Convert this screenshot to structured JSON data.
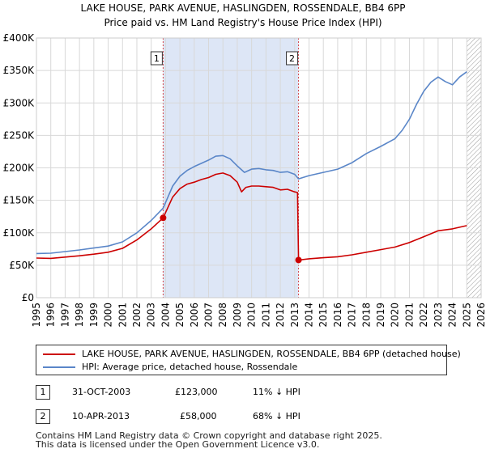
{
  "title_line1": "LAKE HOUSE, PARK AVENUE, HASLINGDEN, ROSSENDALE, BB4 6PP",
  "title_line2": "Price paid vs. HM Land Registry's House Price Index (HPI)",
  "colors": {
    "price": "#cc0000",
    "hpi": "#5a86c8",
    "band": "#dde6f6",
    "grid": "#d8d8d8",
    "hatch": "#999999"
  },
  "chart_data": {
    "type": "line",
    "title": "LAKE HOUSE, PARK AVENUE, HASLINGDEN, ROSSENDALE, BB4 6PP",
    "subtitle": "Price paid vs. HM Land Registry's House Price Index (HPI)",
    "xlim": [
      1995,
      2026
    ],
    "ylim": [
      0,
      400000
    ],
    "x_ticks": [
      "1995",
      "1996",
      "1997",
      "1998",
      "1999",
      "2000",
      "2001",
      "2002",
      "2003",
      "2004",
      "2005",
      "2006",
      "2007",
      "2008",
      "2009",
      "2010",
      "2011",
      "2012",
      "2013",
      "2014",
      "2015",
      "2016",
      "2017",
      "2018",
      "2019",
      "2020",
      "2021",
      "2022",
      "2023",
      "2024",
      "2025",
      "2026"
    ],
    "y_ticks": [
      {
        "value": 0,
        "label": "£0"
      },
      {
        "value": 50000,
        "label": "£50K"
      },
      {
        "value": 100000,
        "label": "£100K"
      },
      {
        "value": 150000,
        "label": "£150K"
      },
      {
        "value": 200000,
        "label": "£200K"
      },
      {
        "value": 250000,
        "label": "£250K"
      },
      {
        "value": 300000,
        "label": "£300K"
      },
      {
        "value": 350000,
        "label": "£350K"
      },
      {
        "value": 400000,
        "label": "£400K"
      }
    ],
    "grid": true,
    "shaded_period": [
      2003.83,
      2013.27
    ],
    "forecast_from": 2025.0,
    "series": [
      {
        "name": "LAKE HOUSE, PARK AVENUE, HASLINGDEN, ROSSENDALE, BB4 6PP (detached house)",
        "color": "#cc0000",
        "points": [
          [
            1995.0,
            61000
          ],
          [
            1996.0,
            60500
          ],
          [
            1997.0,
            62500
          ],
          [
            1998.0,
            64500
          ],
          [
            1999.0,
            67000
          ],
          [
            2000.0,
            70000
          ],
          [
            2001.0,
            76000
          ],
          [
            2002.0,
            89000
          ],
          [
            2003.0,
            106000
          ],
          [
            2003.83,
            123000
          ],
          [
            2004.5,
            155000
          ],
          [
            2005.0,
            168000
          ],
          [
            2005.5,
            175000
          ],
          [
            2006.0,
            178000
          ],
          [
            2006.5,
            182000
          ],
          [
            2007.0,
            185000
          ],
          [
            2007.5,
            190000
          ],
          [
            2008.0,
            192000
          ],
          [
            2008.5,
            188000
          ],
          [
            2009.0,
            178000
          ],
          [
            2009.3,
            163000
          ],
          [
            2009.6,
            170000
          ],
          [
            2010.0,
            172000
          ],
          [
            2010.5,
            172000
          ],
          [
            2011.0,
            171000
          ],
          [
            2011.5,
            170000
          ],
          [
            2012.0,
            166000
          ],
          [
            2012.5,
            167000
          ],
          [
            2013.0,
            163000
          ],
          [
            2013.2,
            162000
          ],
          [
            2013.27,
            58000
          ],
          [
            2014.0,
            60000
          ],
          [
            2015.0,
            61500
          ],
          [
            2016.0,
            63000
          ],
          [
            2017.0,
            66000
          ],
          [
            2018.0,
            70000
          ],
          [
            2019.0,
            74000
          ],
          [
            2020.0,
            78000
          ],
          [
            2021.0,
            85000
          ],
          [
            2022.0,
            94000
          ],
          [
            2023.0,
            103000
          ],
          [
            2024.0,
            106000
          ],
          [
            2025.0,
            111000
          ]
        ]
      },
      {
        "name": "HPI: Average price, detached house, Rossendale",
        "color": "#5a86c8",
        "points": [
          [
            1995.0,
            68000
          ],
          [
            1996.0,
            68500
          ],
          [
            1997.0,
            71000
          ],
          [
            1998.0,
            73500
          ],
          [
            1999.0,
            76500
          ],
          [
            2000.0,
            79500
          ],
          [
            2001.0,
            86000
          ],
          [
            2002.0,
            100000
          ],
          [
            2003.0,
            119000
          ],
          [
            2003.83,
            138000
          ],
          [
            2004.5,
            172000
          ],
          [
            2005.0,
            187000
          ],
          [
            2005.5,
            196000
          ],
          [
            2006.0,
            202000
          ],
          [
            2006.5,
            207000
          ],
          [
            2007.0,
            212000
          ],
          [
            2007.5,
            218000
          ],
          [
            2008.0,
            219000
          ],
          [
            2008.5,
            214000
          ],
          [
            2009.0,
            203000
          ],
          [
            2009.5,
            193000
          ],
          [
            2010.0,
            198000
          ],
          [
            2010.5,
            199000
          ],
          [
            2011.0,
            197000
          ],
          [
            2011.5,
            196000
          ],
          [
            2012.0,
            193000
          ],
          [
            2012.5,
            194000
          ],
          [
            2013.0,
            190000
          ],
          [
            2013.27,
            183000
          ],
          [
            2014.0,
            188000
          ],
          [
            2015.0,
            193000
          ],
          [
            2016.0,
            198000
          ],
          [
            2017.0,
            208000
          ],
          [
            2018.0,
            222000
          ],
          [
            2019.0,
            233000
          ],
          [
            2020.0,
            245000
          ],
          [
            2020.5,
            258000
          ],
          [
            2021.0,
            275000
          ],
          [
            2021.5,
            298000
          ],
          [
            2022.0,
            318000
          ],
          [
            2022.5,
            332000
          ],
          [
            2023.0,
            340000
          ],
          [
            2023.5,
            333000
          ],
          [
            2024.0,
            328000
          ],
          [
            2024.5,
            340000
          ],
          [
            2025.0,
            348000
          ]
        ]
      }
    ],
    "annotations": [
      {
        "label": "1",
        "x": 2003.83,
        "y": 123000
      },
      {
        "label": "2",
        "x": 2013.27,
        "y": 58000
      }
    ]
  },
  "legend": {
    "price_label": "LAKE HOUSE, PARK AVENUE, HASLINGDEN, ROSSENDALE, BB4 6PP (detached house)",
    "hpi_label": "HPI: Average price, detached house, Rossendale"
  },
  "transactions": [
    {
      "num": "1",
      "date": "31-OCT-2003",
      "price": "£123,000",
      "hpi": "11% ↓ HPI"
    },
    {
      "num": "2",
      "date": "10-APR-2013",
      "price": "£58,000",
      "hpi": "68% ↓ HPI"
    }
  ],
  "footer_line1": "Contains HM Land Registry data © Crown copyright and database right 2025.",
  "footer_line2": "This data is licensed under the Open Government Licence v3.0."
}
